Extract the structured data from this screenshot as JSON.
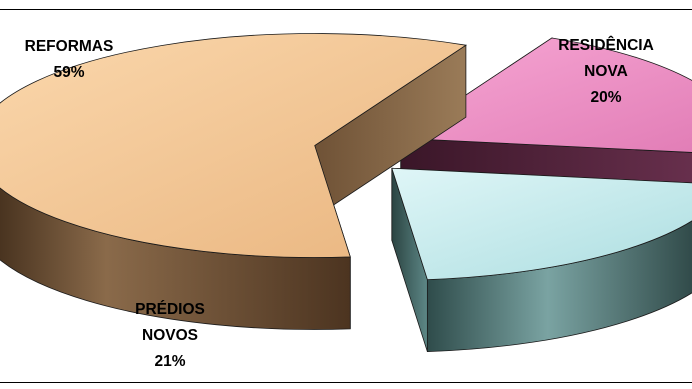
{
  "chart_data": {
    "type": "pie",
    "style": "3d-exploded",
    "slices": [
      {
        "label_lines": [
          "REFORMAS"
        ],
        "percent_label": "59%",
        "value": 59,
        "color_top": "#f6c794",
        "color_side": "#6a4d32"
      },
      {
        "label_lines": [
          "RESIDÊNCIA",
          "NOVA"
        ],
        "percent_label": "20%",
        "value": 20,
        "color_top": "#f08ec4",
        "color_side": "#5e2a44"
      },
      {
        "label_lines": [
          "PRÉDIOS",
          "NOVOS"
        ],
        "percent_label": "21%",
        "value": 21,
        "color_top": "#c6ecee",
        "color_side": "#3f6362"
      }
    ],
    "legend": "none"
  }
}
